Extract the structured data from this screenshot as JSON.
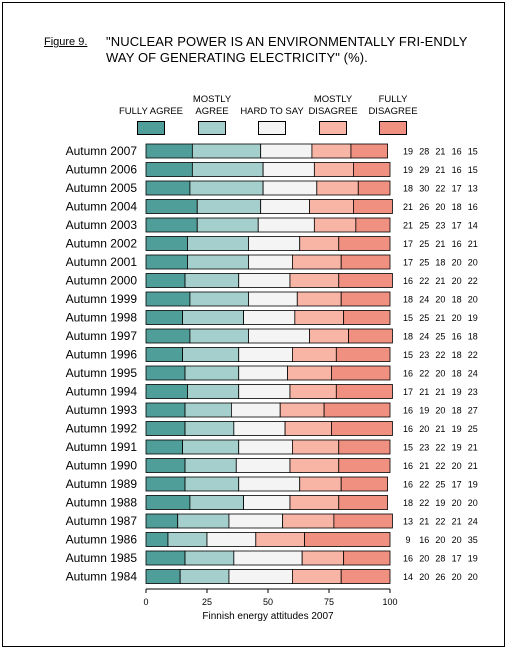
{
  "figure_label": "Figure 9.",
  "title": "\"NUCLEAR POWER IS AN ENVIRONMENTALLY FRI-ENDLY WAY OF GENERATING ELECTRICITY\" (%).",
  "chart_data": {
    "type": "bar",
    "orientation": "horizontal",
    "stacked": true,
    "title": "\"NUCLEAR POWER IS AN ENVIRONMENTALLY FRI-ENDLY WAY OF GENERATING ELECTRICITY\" (%).",
    "xlabel": "Finnish energy attitudes 2007",
    "ylabel": "",
    "xlim": [
      0,
      100
    ],
    "xticks": [
      0,
      25,
      50,
      75,
      100
    ],
    "legend_position": "top",
    "categories": [
      "Autumn 2007",
      "Autumn 2006",
      "Autumn 2005",
      "Autumn 2004",
      "Autumn 2003",
      "Autumn 2002",
      "Autumn 2001",
      "Autumn 2000",
      "Autumn 1999",
      "Autumn 1998",
      "Autumn 1997",
      "Autumn 1996",
      "Autumn 1995",
      "Autumn 1994",
      "Autumn 1993",
      "Autumn 1992",
      "Autumn 1991",
      "Autumn 1990",
      "Autumn 1989",
      "Autumn 1988",
      "Autumn 1987",
      "Autumn 1986",
      "Autumn 1985",
      "Autumn 1984"
    ],
    "series": [
      {
        "name": "FULLY AGREE",
        "color": "#4f9e9a",
        "values": [
          19,
          19,
          18,
          21,
          21,
          17,
          17,
          16,
          18,
          15,
          18,
          15,
          16,
          17,
          16,
          16,
          15,
          16,
          16,
          18,
          13,
          9,
          16,
          14
        ]
      },
      {
        "name": "MOSTLY AGREE",
        "color": "#a5cfcc",
        "values": [
          28,
          29,
          30,
          26,
          25,
          25,
          25,
          22,
          24,
          25,
          24,
          23,
          22,
          21,
          19,
          20,
          23,
          21,
          22,
          22,
          21,
          16,
          20,
          20
        ]
      },
      {
        "name": "HARD TO SAY",
        "color": "#f4f4f4",
        "values": [
          21,
          21,
          22,
          20,
          23,
          21,
          18,
          21,
          20,
          21,
          25,
          22,
          20,
          21,
          20,
          21,
          22,
          22,
          25,
          19,
          22,
          20,
          28,
          26
        ]
      },
      {
        "name": "MOSTLY DISAGREE",
        "color": "#f8b5a6",
        "values": [
          16,
          16,
          17,
          18,
          17,
          16,
          20,
          20,
          18,
          20,
          16,
          18,
          18,
          19,
          18,
          19,
          19,
          20,
          17,
          20,
          21,
          20,
          17,
          20
        ]
      },
      {
        "name": "FULLY DISAGREE",
        "color": "#f09080",
        "values": [
          15,
          15,
          13,
          16,
          14,
          21,
          20,
          22,
          20,
          19,
          18,
          22,
          24,
          23,
          27,
          25,
          21,
          21,
          19,
          20,
          24,
          35,
          19,
          20
        ]
      }
    ]
  }
}
